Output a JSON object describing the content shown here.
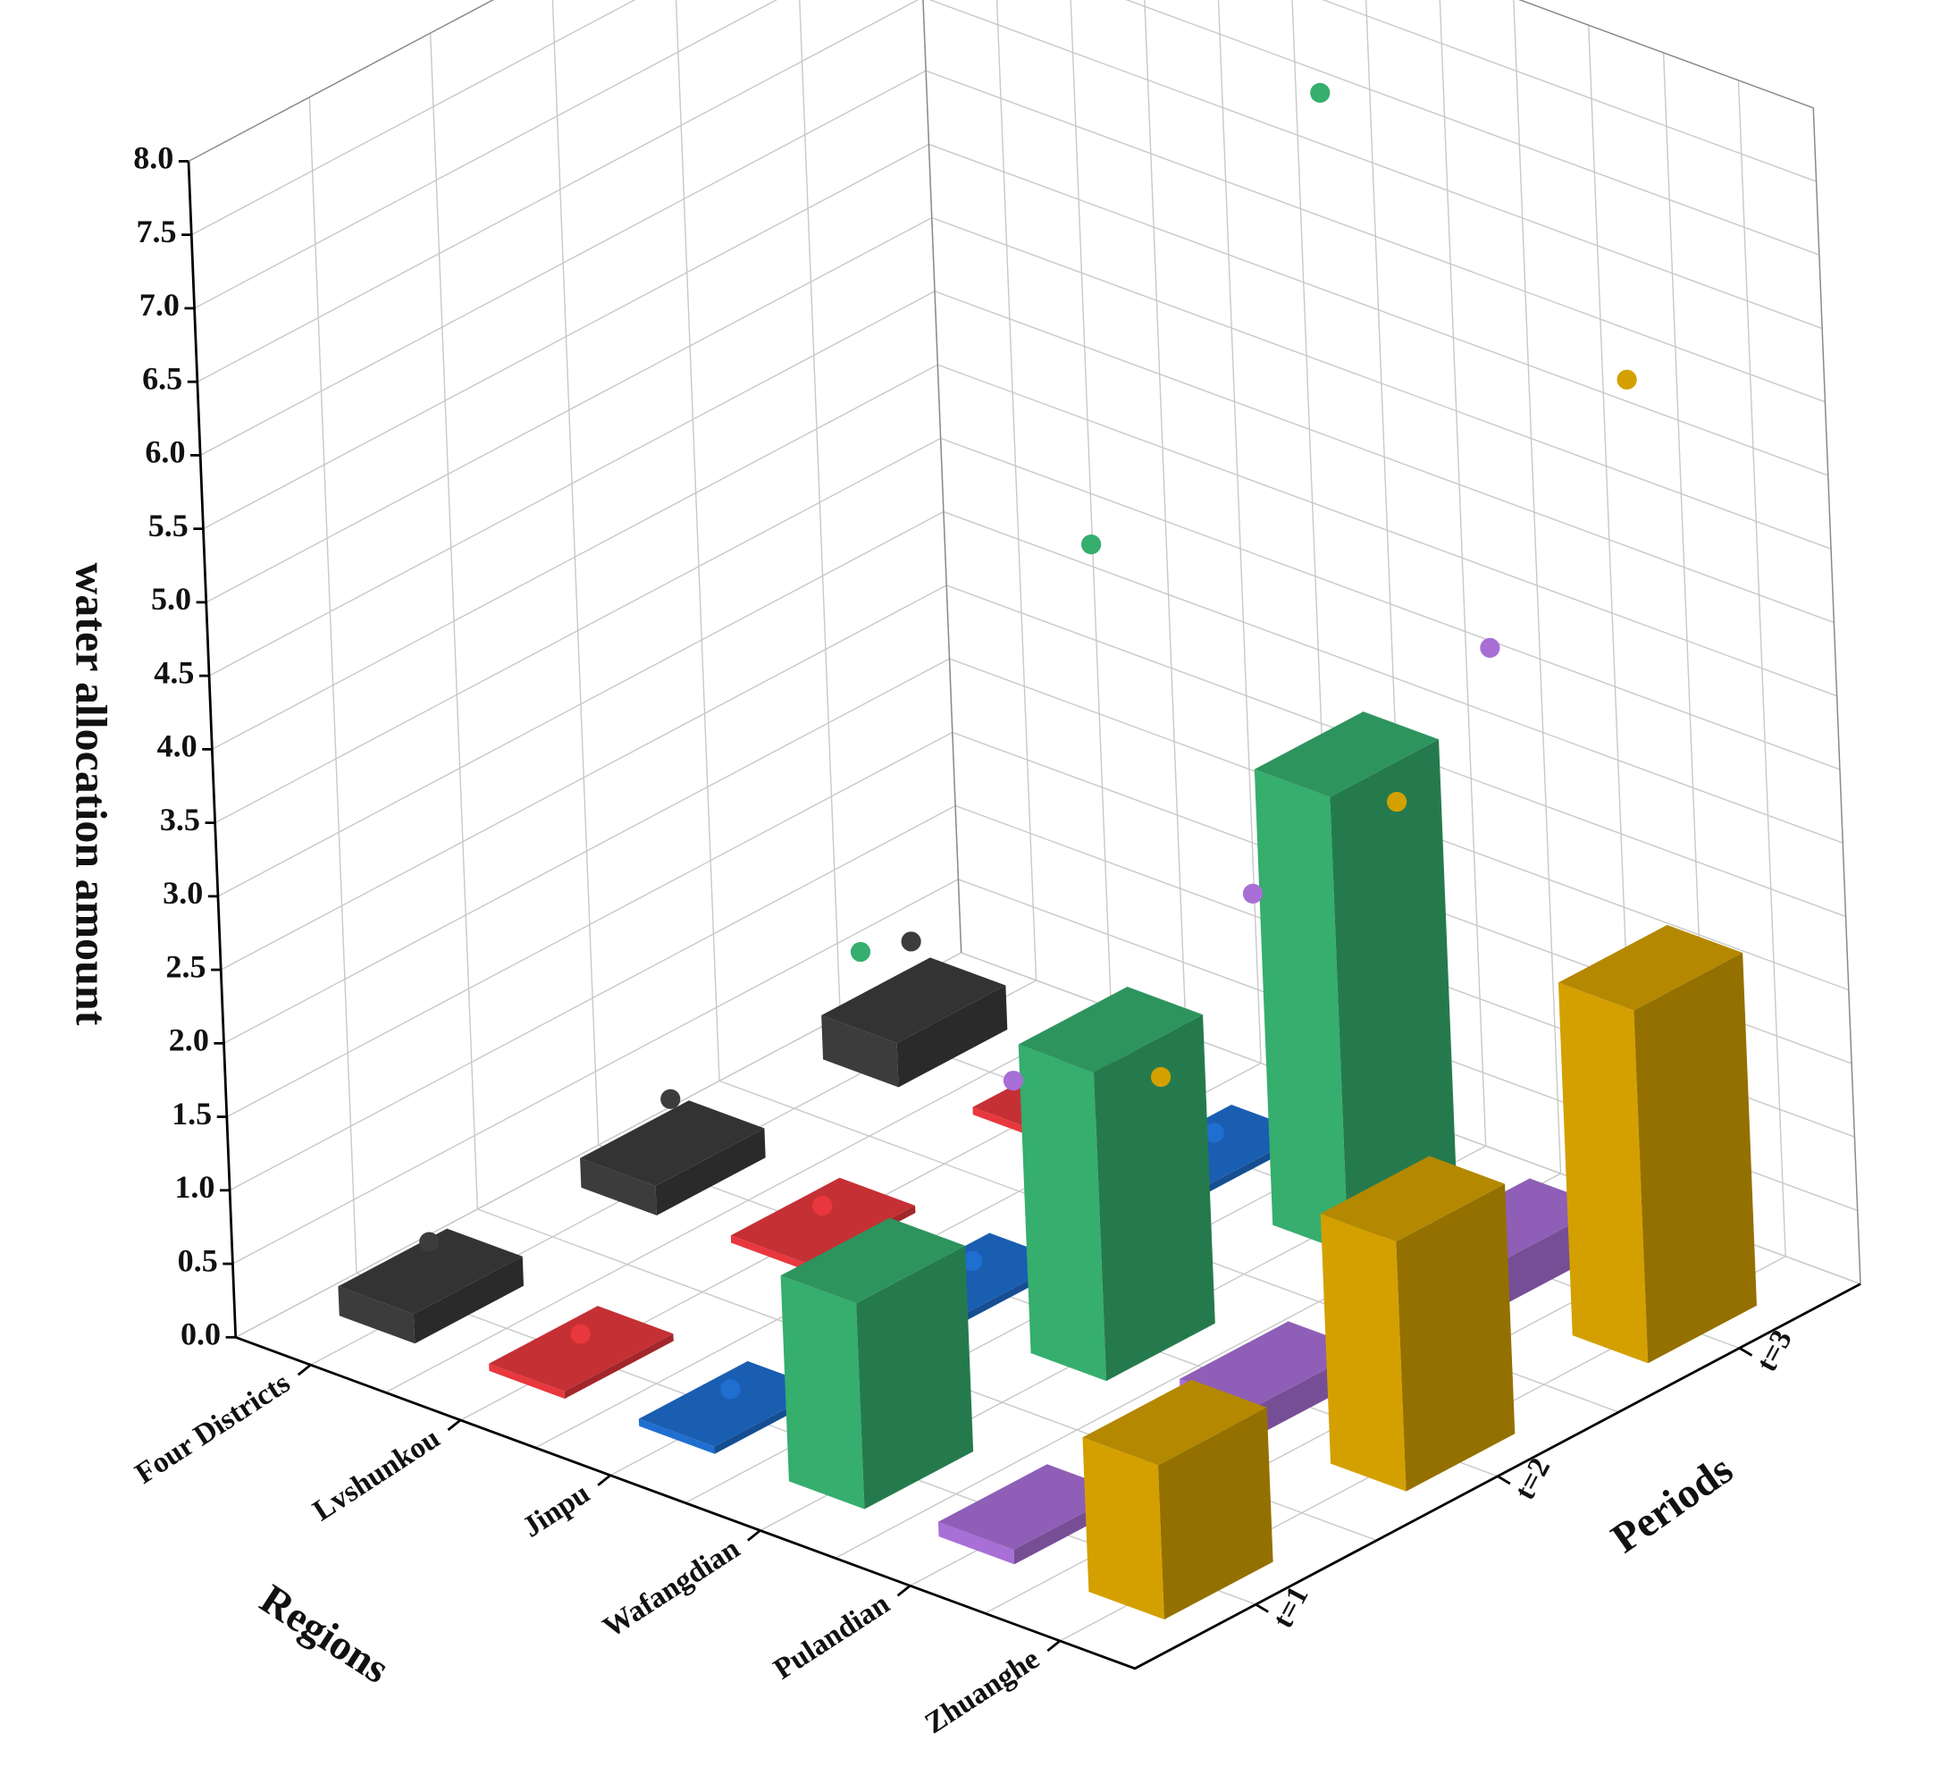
{
  "chart_data": {
    "type": "bar3d",
    "y_axis_label": "water allocation amount",
    "x_axis_label": "Regions",
    "z_axis_label": "Periods",
    "categories": [
      "Four Districts",
      "Lvshunkou",
      "Jinpu",
      "Wafangdian",
      "Pulandian",
      "Zhuanghe"
    ],
    "periods": [
      "t=1",
      "t=2",
      "t=3"
    ],
    "colors": [
      "#3c3c3c",
      "#e8383d",
      "#1f6fd1",
      "#35ae6e",
      "#a86fd6",
      "#d4a000"
    ],
    "bars": [
      [
        0.2,
        0.2,
        0.3
      ],
      [
        0.05,
        0.05,
        0.05
      ],
      [
        0.05,
        0.05,
        0.05
      ],
      [
        1.4,
        2.1,
        3.1
      ],
      [
        0.1,
        0.2,
        0.3
      ],
      [
        1.05,
        1.7,
        2.4
      ]
    ],
    "points": [
      [
        0.4,
        0.5,
        0.7
      ],
      [
        0.15,
        0.15,
        0.15
      ],
      [
        0.15,
        0.15,
        0.15
      ],
      [
        3.5,
        5.4,
        7.6
      ],
      [
        3.0,
        3.4,
        4.2
      ],
      [
        3.4,
        4.4,
        6.4
      ]
    ],
    "ylim": [
      0,
      8
    ],
    "yticks": [
      {
        "value": 0,
        "label": "0.0"
      },
      0.5,
      {
        "value": 1,
        "label": "1.0"
      },
      1.5,
      {
        "value": 2,
        "label": "2.0"
      },
      2.5,
      {
        "value": 3,
        "label": "3.0"
      },
      3.5,
      {
        "value": 4,
        "label": "4.0"
      },
      4.5,
      {
        "value": 5,
        "label": "5.0"
      },
      5.5,
      {
        "value": 6,
        "label": "6.0"
      },
      6.5,
      {
        "value": 7,
        "label": "7.0"
      },
      7.5,
      {
        "value": 8,
        "label": "8.0"
      }
    ],
    "grid": true
  }
}
